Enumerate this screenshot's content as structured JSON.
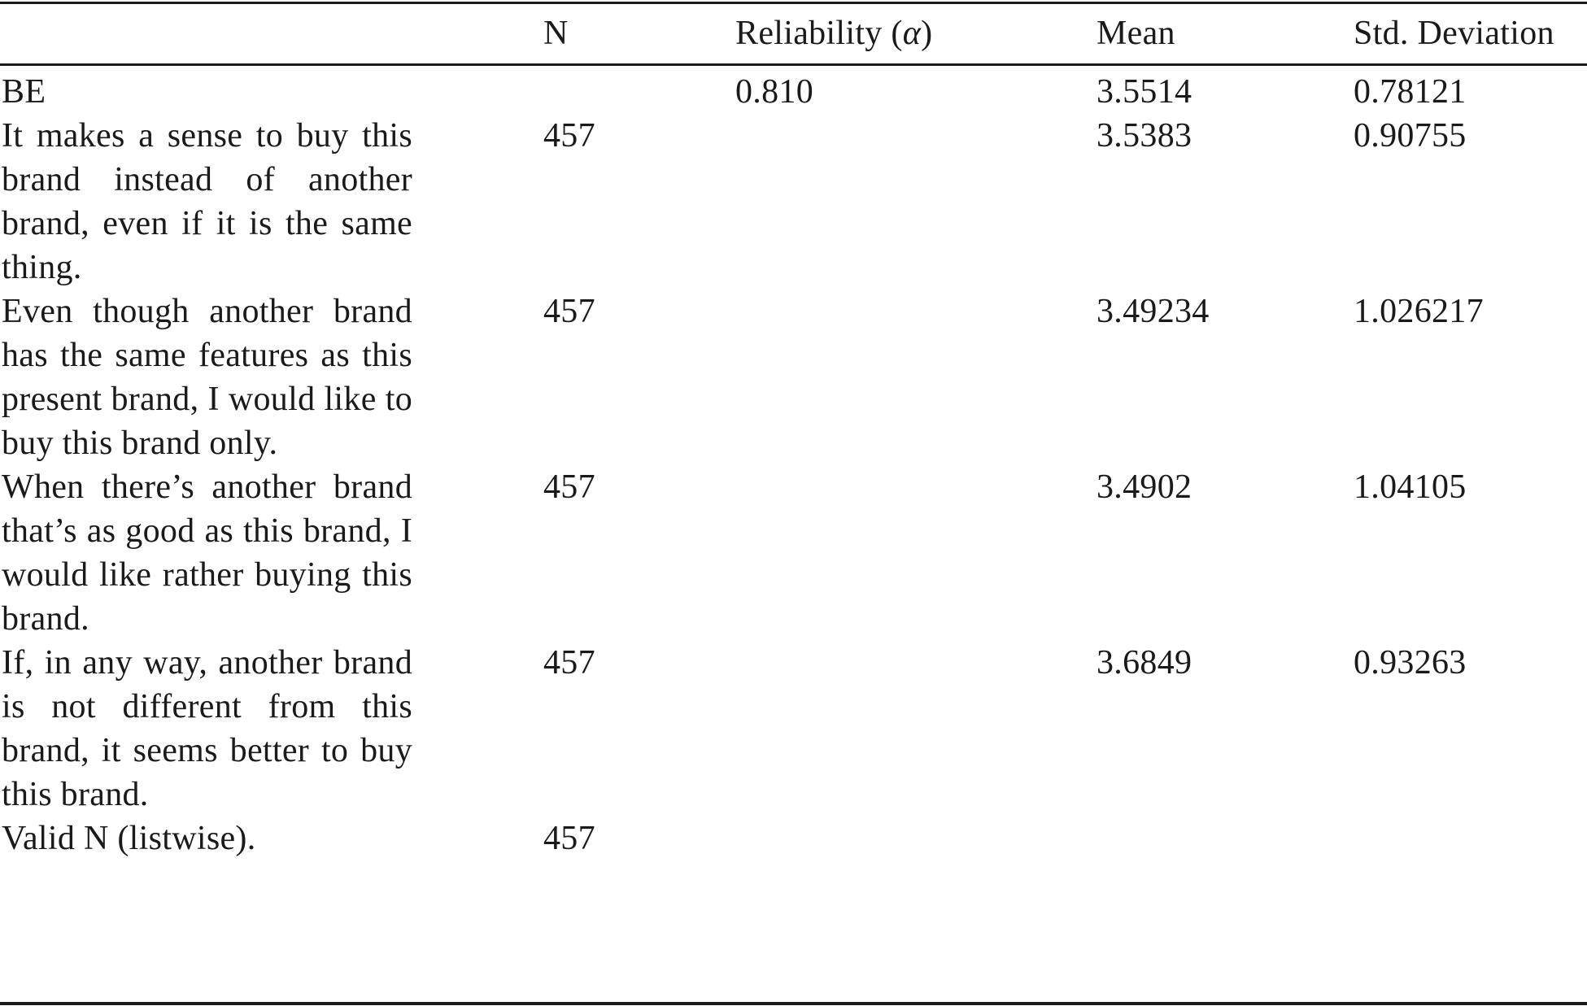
{
  "table": {
    "headers": {
      "item": "",
      "n": "N",
      "reliability_prefix": "Reliability (",
      "reliability_symbol": "α",
      "reliability_suffix": ")",
      "mean": "Mean",
      "std_dev": "Std. Deviation"
    },
    "rows": [
      {
        "item": "BE",
        "n": "",
        "reliability": "0.810",
        "mean": "3.5514",
        "std_dev": "0.78121"
      },
      {
        "item": "It makes a sense to buy this brand instead of another brand, even if it is the same thing.",
        "n": "457",
        "reliability": "",
        "mean": "3.5383",
        "std_dev": "0.90755"
      },
      {
        "item": "Even though another brand has the same features as this present brand, I would like to buy this brand only.",
        "n": "457",
        "reliability": "",
        "mean": "3.49234",
        "std_dev": "1.026217"
      },
      {
        "item": "When there’s another brand that’s as good as this brand, I would like rather buying this brand.",
        "n": "457",
        "reliability": "",
        "mean": "3.4902",
        "std_dev": "1.04105"
      },
      {
        "item": "If, in any way, another brand is not different from this brand, it seems better to buy this brand.",
        "n": "457",
        "reliability": "",
        "mean": "3.6849",
        "std_dev": "0.93263"
      },
      {
        "item": "Valid N (listwise).",
        "n": "457",
        "reliability": "",
        "mean": "",
        "std_dev": ""
      }
    ]
  }
}
